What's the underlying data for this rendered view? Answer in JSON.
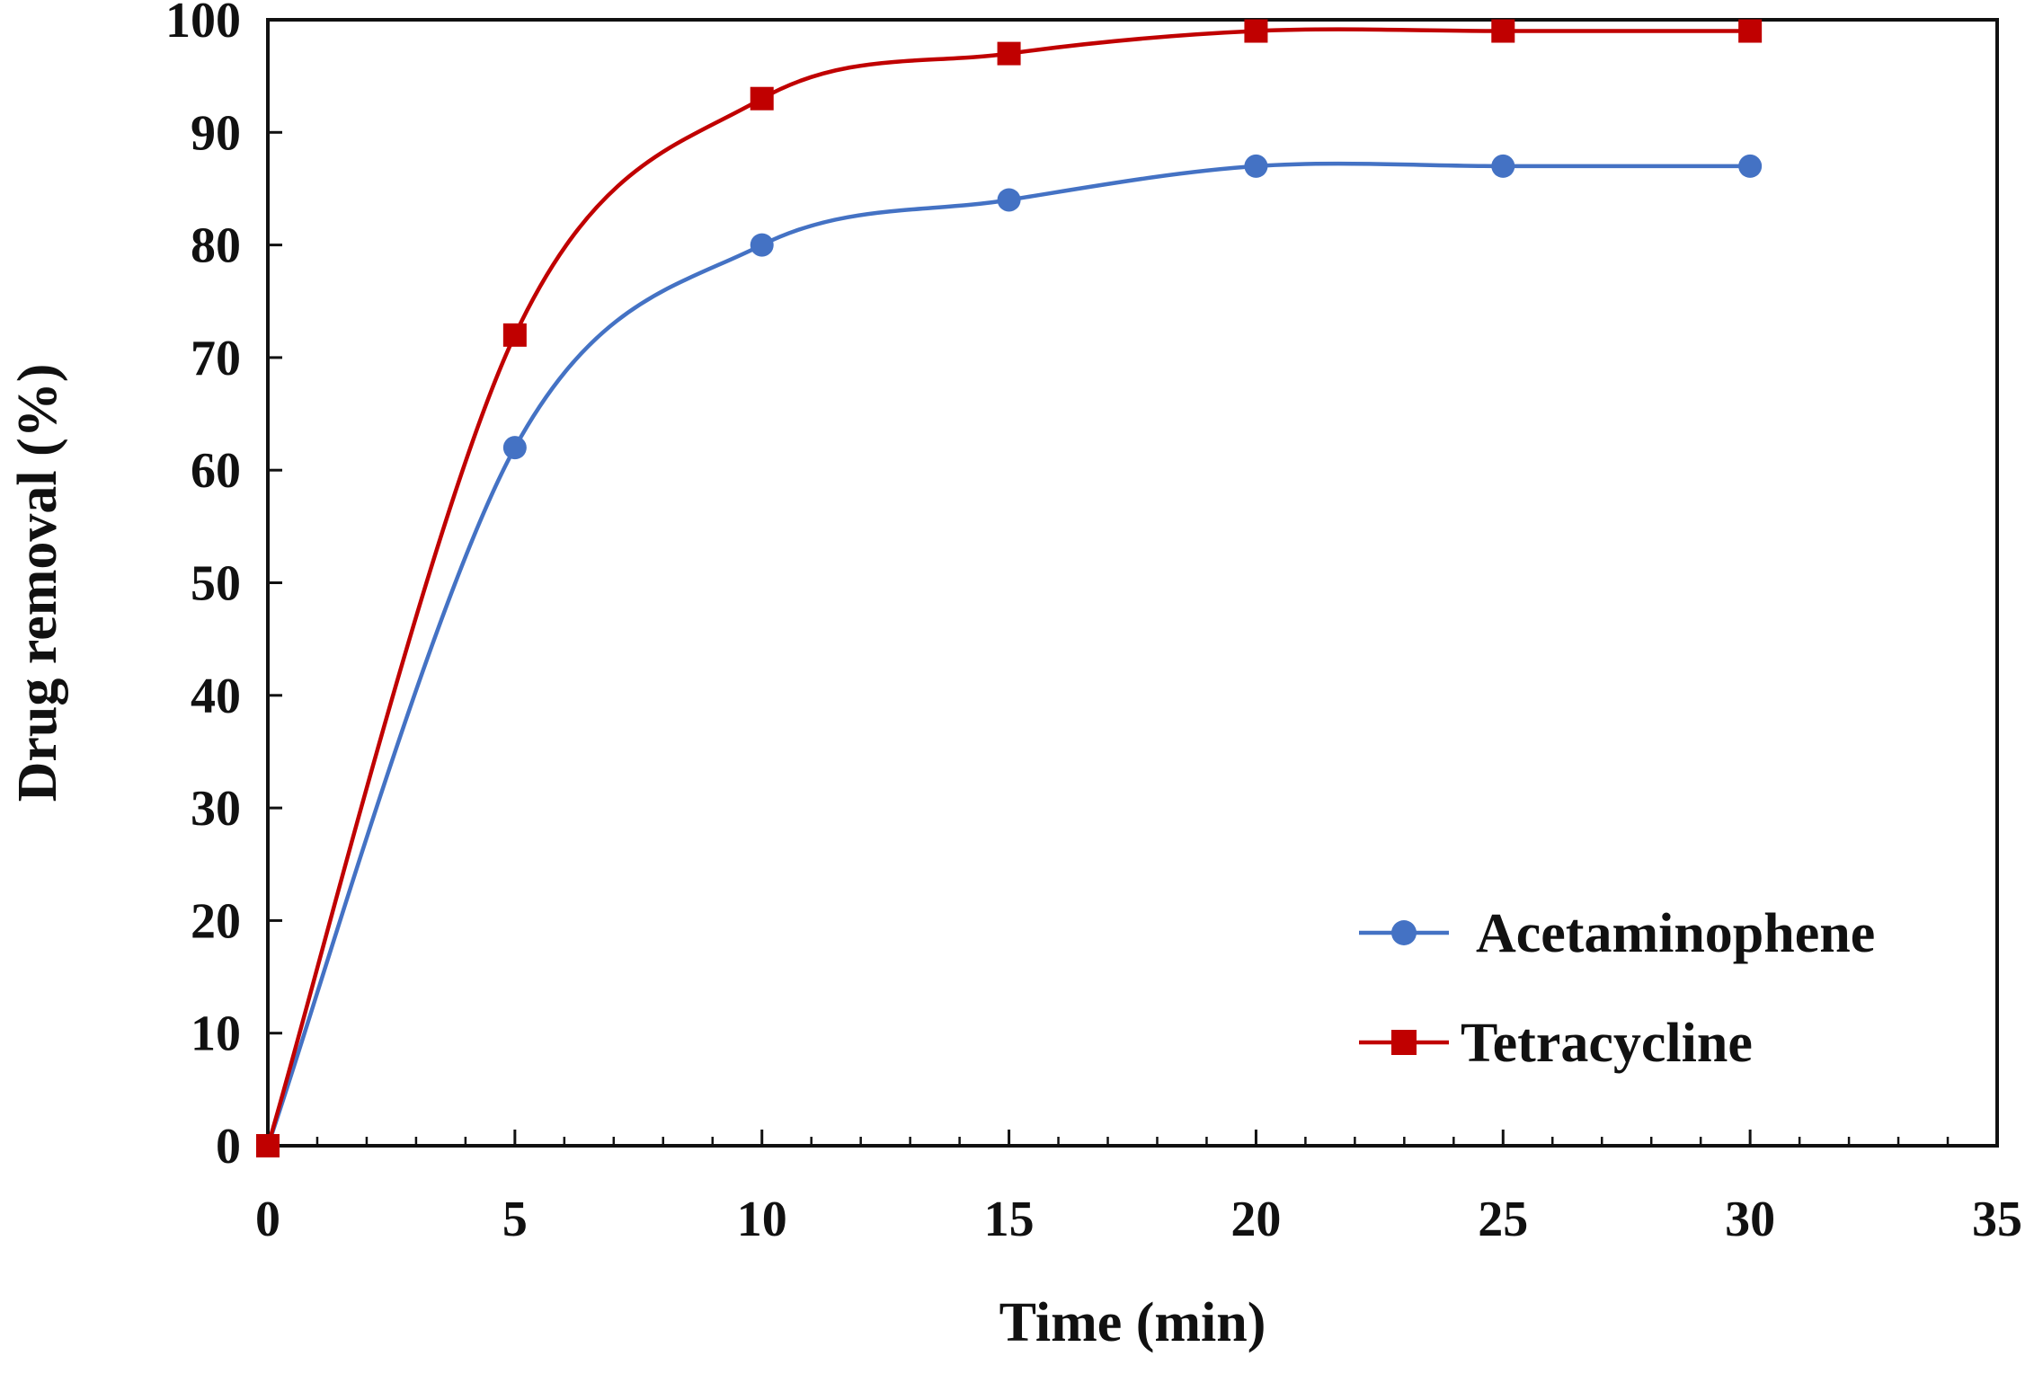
{
  "colors": {
    "acetaminophene": "#4472C4",
    "tetracycline": "#C00000",
    "axis": "#111111",
    "background": "#ffffff"
  },
  "chart_data": {
    "type": "line",
    "title": "",
    "xlabel": "Time (min)",
    "ylabel": "Drug removal (%)",
    "xlim": [
      0,
      35
    ],
    "ylim": [
      0,
      100
    ],
    "x_ticks": [
      0,
      5,
      10,
      15,
      20,
      25,
      30,
      35
    ],
    "y_ticks": [
      0,
      10,
      20,
      30,
      40,
      50,
      60,
      70,
      80,
      90,
      100
    ],
    "x_tick_labels": [
      "0",
      "5",
      "10",
      "15",
      "20",
      "25",
      "30",
      "35"
    ],
    "y_tick_labels": [
      "0",
      "10",
      "20",
      "30",
      "40",
      "50",
      "60",
      "70",
      "80",
      "90",
      "100"
    ],
    "x_minor_step": 1,
    "grid": false,
    "smooth": true,
    "legend_position": "bottom-right",
    "x": [
      0,
      5,
      10,
      15,
      20,
      25,
      30
    ],
    "series": [
      {
        "name": "Acetaminophene",
        "marker": "circle",
        "color": "#4472C4",
        "values": [
          0,
          62,
          80,
          84,
          87,
          87,
          87
        ]
      },
      {
        "name": "Tetracycline",
        "marker": "square",
        "color": "#C00000",
        "values": [
          0,
          72,
          93,
          97,
          99,
          99,
          99
        ]
      }
    ]
  }
}
